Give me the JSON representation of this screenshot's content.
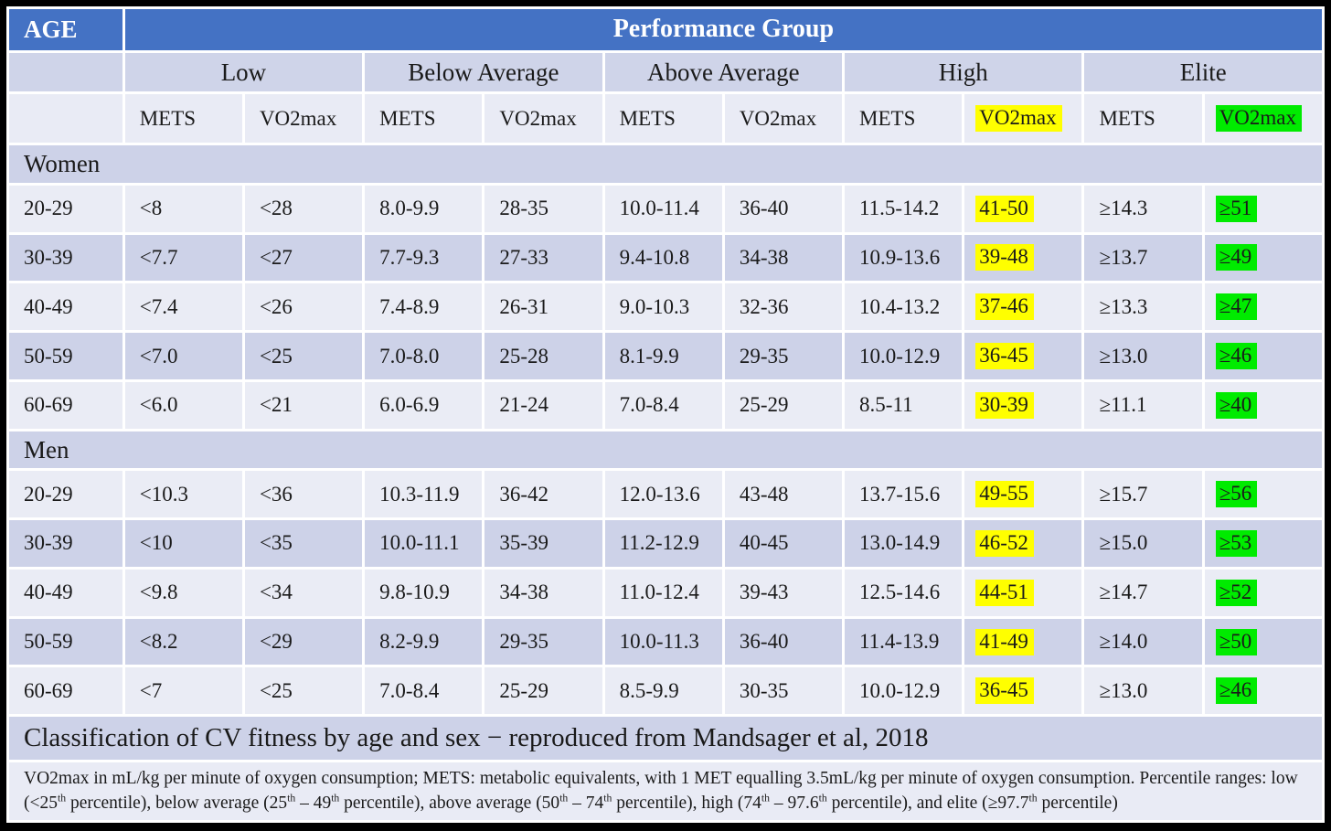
{
  "colors": {
    "frame_border": "#000000",
    "header_blue": "#4472C4",
    "header_text": "#FFFFFF",
    "group_band": "#CFD4E9",
    "subheader_bg": "#E9EBF5",
    "section_band": "#CDD2E8",
    "row_light": "#EAECF5",
    "row_dark": "#CDD2E8",
    "caption_bg": "#CDD2E8",
    "footnote_bg": "#E9EBF5",
    "highlight_yellow": "#FFFF00",
    "highlight_green": "#00EB00",
    "text": "#1A1A1A"
  },
  "table": {
    "corner_label": "AGE",
    "title": "Performance Group",
    "groups": [
      {
        "label": "Low",
        "vo2_highlight": null
      },
      {
        "label": "Below Average",
        "vo2_highlight": null
      },
      {
        "label": "Above Average",
        "vo2_highlight": null
      },
      {
        "label": "High",
        "vo2_highlight": "yellow"
      },
      {
        "label": "Elite",
        "vo2_highlight": "green"
      }
    ],
    "subheaders": [
      "METS",
      "VO2max",
      "METS",
      "VO2max",
      "METS",
      "VO2max",
      "METS",
      "VO2max",
      "METS",
      "VO2max"
    ],
    "sections": [
      {
        "label": "Women",
        "rows": [
          {
            "age": "20-29",
            "cells": [
              "<8",
              "<28",
              "8.0-9.9",
              "28-35",
              "10.0-11.4",
              "36-40",
              "11.5-14.2",
              "41-50",
              "≥14.3",
              "≥51"
            ]
          },
          {
            "age": "30-39",
            "cells": [
              "<7.7",
              "<27",
              "7.7-9.3",
              "27-33",
              "9.4-10.8",
              "34-38",
              "10.9-13.6",
              "39-48",
              "≥13.7",
              "≥49"
            ]
          },
          {
            "age": "40-49",
            "cells": [
              "<7.4",
              "<26",
              "7.4-8.9",
              "26-31",
              "9.0-10.3",
              "32-36",
              "10.4-13.2",
              "37-46",
              "≥13.3",
              "≥47"
            ]
          },
          {
            "age": "50-59",
            "cells": [
              "<7.0",
              "<25",
              "7.0-8.0",
              "25-28",
              "8.1-9.9",
              "29-35",
              "10.0-12.9",
              "36-45",
              "≥13.0",
              "≥46"
            ]
          },
          {
            "age": "60-69",
            "cells": [
              "<6.0",
              "<21",
              "6.0-6.9",
              "21-24",
              "7.0-8.4",
              "25-29",
              "8.5-11",
              "30-39",
              "≥11.1",
              "≥40"
            ]
          }
        ]
      },
      {
        "label": "Men",
        "rows": [
          {
            "age": "20-29",
            "cells": [
              "<10.3",
              "<36",
              "10.3-11.9",
              "36-42",
              "12.0-13.6",
              "43-48",
              "13.7-15.6",
              "49-55",
              "≥15.7",
              "≥56"
            ]
          },
          {
            "age": "30-39",
            "cells": [
              "<10",
              "<35",
              "10.0-11.1",
              "35-39",
              "11.2-12.9",
              "40-45",
              "13.0-14.9",
              "46-52",
              "≥15.0",
              "≥53"
            ]
          },
          {
            "age": "40-49",
            "cells": [
              "<9.8",
              "<34",
              "9.8-10.9",
              "34-38",
              "11.0-12.4",
              "39-43",
              "12.5-14.6",
              "44-51",
              "≥14.7",
              "≥52"
            ]
          },
          {
            "age": "50-59",
            "cells": [
              "<8.2",
              "<29",
              "8.2-9.9",
              "29-35",
              "10.0-11.3",
              "36-40",
              "11.4-13.9",
              "41-49",
              "≥14.0",
              "≥50"
            ]
          },
          {
            "age": "60-69",
            "cells": [
              "<7",
              "<25",
              "7.0-8.4",
              "25-29",
              "8.5-9.9",
              "30-35",
              "10.0-12.9",
              "36-45",
              "≥13.0",
              "≥46"
            ]
          }
        ]
      }
    ],
    "caption": "Classification of CV fitness by age and sex − reproduced from Mandsager et al, 2018",
    "footnote_segments": [
      {
        "t": "VO2max in mL/kg per minute of oxygen consumption; METS: metabolic equivalents, with 1 MET equalling 3.5mL/kg per minute of oxygen consumption. Percentile ranges: low (<25"
      },
      {
        "t": "th",
        "sup": true
      },
      {
        "t": " percentile), below average (25"
      },
      {
        "t": "th",
        "sup": true
      },
      {
        "t": " – 49"
      },
      {
        "t": "th",
        "sup": true
      },
      {
        "t": " percentile), above average (50"
      },
      {
        "t": "th",
        "sup": true
      },
      {
        "t": " – 74"
      },
      {
        "t": "th",
        "sup": true
      },
      {
        "t": " percentile), high (74"
      },
      {
        "t": "th",
        "sup": true
      },
      {
        "t": " – 97.6"
      },
      {
        "t": "th",
        "sup": true
      },
      {
        "t": " percentile), and elite (≥97.7"
      },
      {
        "t": "th",
        "sup": true
      },
      {
        "t": " percentile)"
      }
    ]
  }
}
